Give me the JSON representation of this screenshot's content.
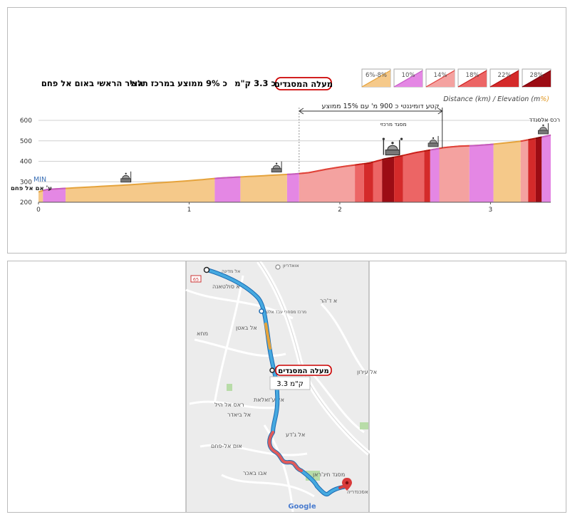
{
  "profile": {
    "headline": {
      "boxed_name": "מעלה המסגדים",
      "length_text": "כ 3.3  ק\"מ",
      "grade_text": "כ 9% ממוצע במרכז תלול",
      "route_text": "הציר הראשי באום אל פחם"
    },
    "legend": [
      {
        "label": "6%-8%",
        "color": "#f5c98a",
        "line": "#e5a33c"
      },
      {
        "label": "10%",
        "color": "#e487e4",
        "line": "#c45ac4"
      },
      {
        "label": "14%",
        "color": "#f4a2a0",
        "line": "#e0403c"
      },
      {
        "label": "18%",
        "color": "#ec6565",
        "line": "#cc1e1e"
      },
      {
        "label": "22%",
        "color": "#d42a2a",
        "line": "#b00f0f"
      },
      {
        "label": "28%",
        "color": "#9c0c14",
        "line": "#7a0008"
      }
    ],
    "axis_caption_main": "Distance (km) / Elevation (m",
    "axis_caption_tail": "%)",
    "min_label": "MIN",
    "start_label": "ע' אם אל פחם",
    "end_label": "רכס אלסנדד",
    "mosque_label": "מסגד מרכזי",
    "dominant_note": "קטע דומיננטי כ 900 מ' עם 15% ממוצע"
  },
  "chart_data": {
    "type": "area",
    "xlabel": "Distance (km)",
    "ylabel": "Elevation (m)",
    "xlim": [
      0,
      3.4
    ],
    "ylim": [
      200,
      600
    ],
    "x_ticks": [
      0,
      1,
      2,
      3
    ],
    "y_ticks": [
      200,
      300,
      400,
      500,
      600
    ],
    "grid": true,
    "profile": {
      "x": [
        0,
        0.05,
        0.18,
        0.6,
        1.0,
        1.2,
        1.5,
        1.7,
        1.8,
        1.9,
        2.0,
        2.1,
        2.2,
        2.3,
        2.4,
        2.5,
        2.6,
        2.7,
        2.8,
        2.9,
        3.0,
        3.1,
        3.2,
        3.3,
        3.4
      ],
      "y": [
        250,
        262,
        268,
        285,
        305,
        318,
        330,
        338,
        345,
        360,
        372,
        382,
        392,
        412,
        425,
        442,
        455,
        468,
        474,
        477,
        482,
        490,
        498,
        512,
        528
      ]
    },
    "segments": [
      {
        "from": 0.03,
        "to": 0.18,
        "grade": "10%"
      },
      {
        "from": 0.18,
        "to": 1.17,
        "grade": "6%-8%"
      },
      {
        "from": 1.17,
        "to": 1.34,
        "grade": "10%"
      },
      {
        "from": 1.34,
        "to": 1.65,
        "grade": "6%-8%"
      },
      {
        "from": 1.65,
        "to": 1.73,
        "grade": "10%"
      },
      {
        "from": 1.73,
        "to": 2.1,
        "grade": "14%"
      },
      {
        "from": 2.1,
        "to": 2.16,
        "grade": "18%"
      },
      {
        "from": 2.16,
        "to": 2.22,
        "grade": "22%"
      },
      {
        "from": 2.22,
        "to": 2.28,
        "grade": "18%"
      },
      {
        "from": 2.28,
        "to": 2.36,
        "grade": "28%"
      },
      {
        "from": 2.36,
        "to": 2.42,
        "grade": "22%"
      },
      {
        "from": 2.42,
        "to": 2.56,
        "grade": "18%"
      },
      {
        "from": 2.56,
        "to": 2.6,
        "grade": "22%"
      },
      {
        "from": 2.6,
        "to": 2.66,
        "grade": "10%"
      },
      {
        "from": 2.66,
        "to": 2.86,
        "grade": "14%"
      },
      {
        "from": 2.86,
        "to": 3.02,
        "grade": "10%"
      },
      {
        "from": 3.02,
        "to": 3.2,
        "grade": "6%-8%"
      },
      {
        "from": 3.2,
        "to": 3.25,
        "grade": "14%"
      },
      {
        "from": 3.25,
        "to": 3.3,
        "grade": "22%"
      },
      {
        "from": 3.3,
        "to": 3.34,
        "grade": "28%"
      },
      {
        "from": 3.34,
        "to": 3.4,
        "grade": "10%"
      }
    ],
    "dominant_section": {
      "from": 1.73,
      "to": 2.68
    },
    "mosques": [
      0.58,
      1.58,
      2.35,
      2.62,
      3.35
    ]
  },
  "map": {
    "badge_name": "מעלה המסגדים",
    "badge_length": "3.3 ק\"מ",
    "road_number": "65",
    "attribution": "Google",
    "places": [
      {
        "text": "אל מדינה"
      },
      {
        "text": "אואדריון"
      },
      {
        "text": "א סולטאנה"
      },
      {
        "text": "א ד'הר"
      },
      {
        "text": "מרכז מסחרי עבד אלטיף"
      },
      {
        "text": "אל באטן"
      },
      {
        "text": "מחא"
      },
      {
        "text": "אל עירון"
      },
      {
        "text": "ראס אל היל"
      },
      {
        "text": "אל ע'זאלאת"
      },
      {
        "text": "אל ביאדר"
      },
      {
        "text": "אל ג'דע"
      },
      {
        "text": "אום אל-פחם"
      },
      {
        "text": "אבו באכר"
      },
      {
        "text": "מסגד חינ'ראן"
      },
      {
        "text": "אסכנדריה"
      }
    ]
  }
}
